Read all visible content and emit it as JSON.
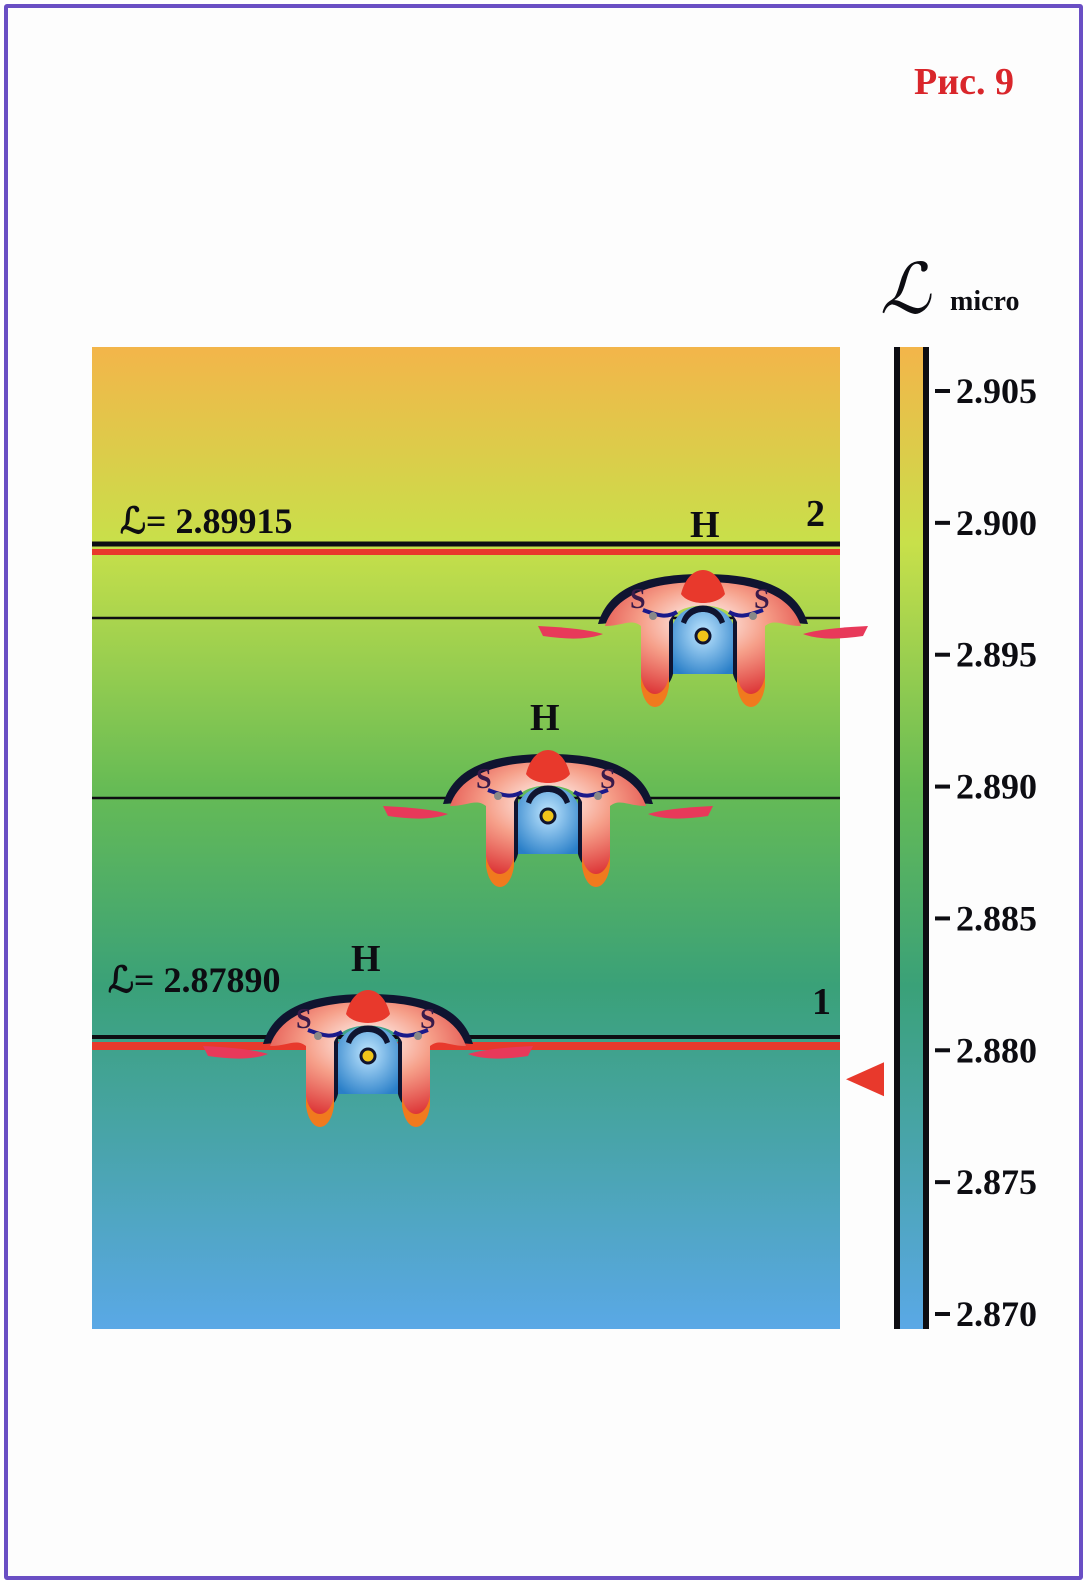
{
  "figure": {
    "title": "Рис. 9"
  },
  "scale": {
    "symbol": "ℒ",
    "subscript": "micro",
    "min": 2.87,
    "max": 2.905,
    "ticks": [
      "2.905",
      "2.900",
      "2.895",
      "2.890",
      "2.885",
      "2.880",
      "2.875",
      "2.870"
    ],
    "marker_value": 2.8789,
    "colors": {
      "top": "#f3b54a",
      "middle": "#b9dd4a",
      "lower": "#3aa178",
      "bottom": "#5aa8e6",
      "marker": "#e8392c"
    }
  },
  "levels": [
    {
      "id": "level-2",
      "label": "ℒ= 2.89915",
      "value": 2.89915,
      "number": "2"
    },
    {
      "id": "level-1",
      "label": "ℒ= 2.87890",
      "value": 2.8789,
      "number": "1"
    }
  ],
  "intermediate_values": [
    2.8968,
    2.8906
  ],
  "molecule": {
    "center_label": "H",
    "side_label": "S",
    "instances": 3
  }
}
